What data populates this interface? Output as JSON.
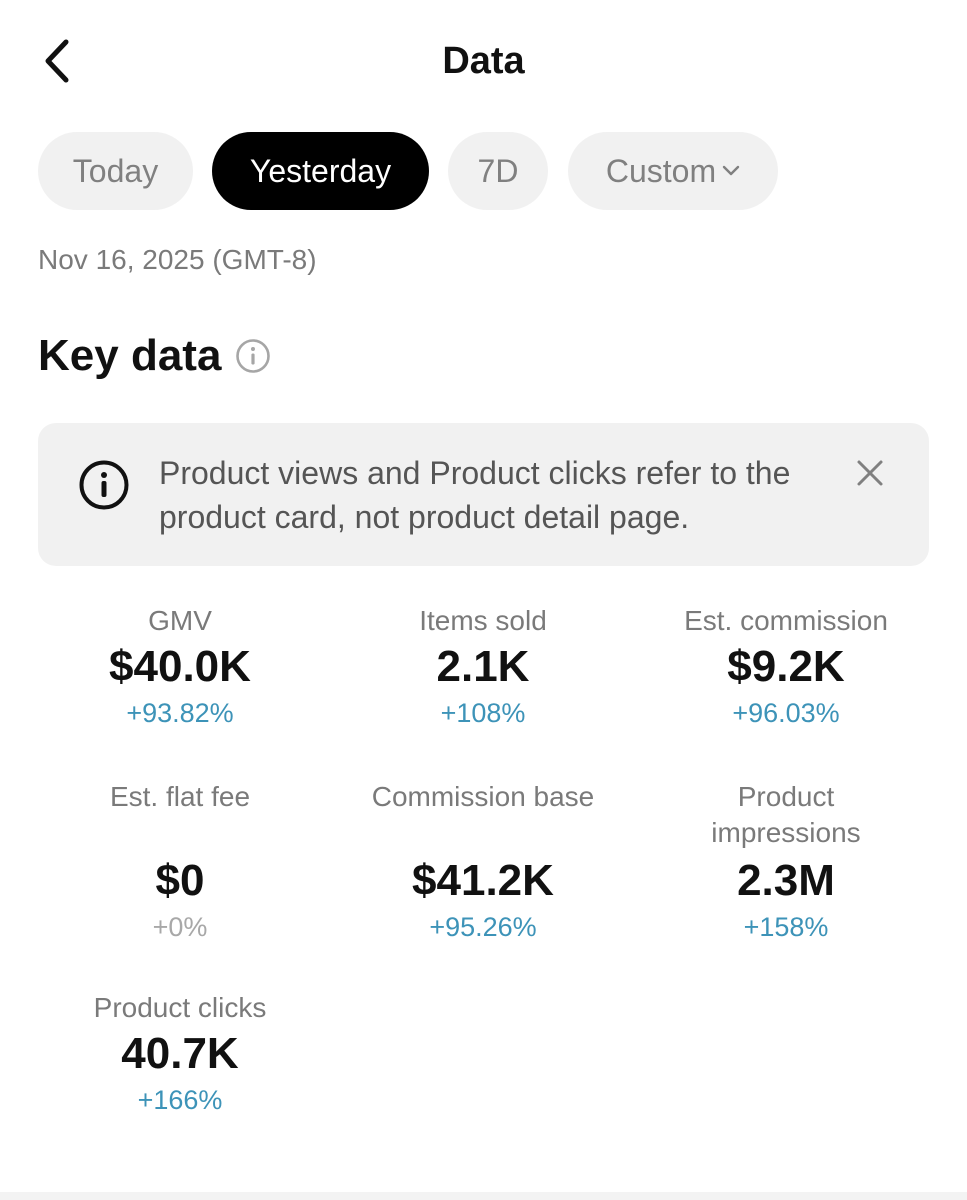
{
  "header": {
    "back_icon": "chevron-left-icon",
    "title": "Data"
  },
  "filters": {
    "chips": [
      {
        "label": "Today",
        "active": false
      },
      {
        "label": "Yesterday",
        "active": true
      },
      {
        "label": "7D",
        "active": false
      },
      {
        "label": "Custom",
        "active": false,
        "icon": "chevron-down-icon"
      }
    ]
  },
  "date_label": "Nov 16, 2025 (GMT-8)",
  "key_data": {
    "title": "Key data",
    "info_icon": "info-icon"
  },
  "notice": {
    "icon": "info-icon",
    "text": "Product views and Product clicks refer to the product card, not product detail page.",
    "close_icon": "close-icon"
  },
  "metrics": [
    {
      "label": "GMV",
      "value": "$40.0K",
      "change": "+93.82%"
    },
    {
      "label": "Items sold",
      "value": "2.1K",
      "change": "+108%"
    },
    {
      "label": "Est. commission",
      "value": "$9.2K",
      "change": "+96.03%"
    },
    {
      "label": "Est. flat fee",
      "value": "$0",
      "change": "+0%"
    },
    {
      "label": "Commission base",
      "value": "$41.2K",
      "change": "+95.26%"
    },
    {
      "label": "Product impressions",
      "value": "2.3M",
      "change": "+158%"
    },
    {
      "label": "Product clicks",
      "value": "40.7K",
      "change": "+166%"
    }
  ],
  "colors": {
    "positive_change": "#3d93b8",
    "neutral_change": "#a8a8a8",
    "active_chip": "#000000",
    "chip_bg": "#f1f1f1"
  }
}
